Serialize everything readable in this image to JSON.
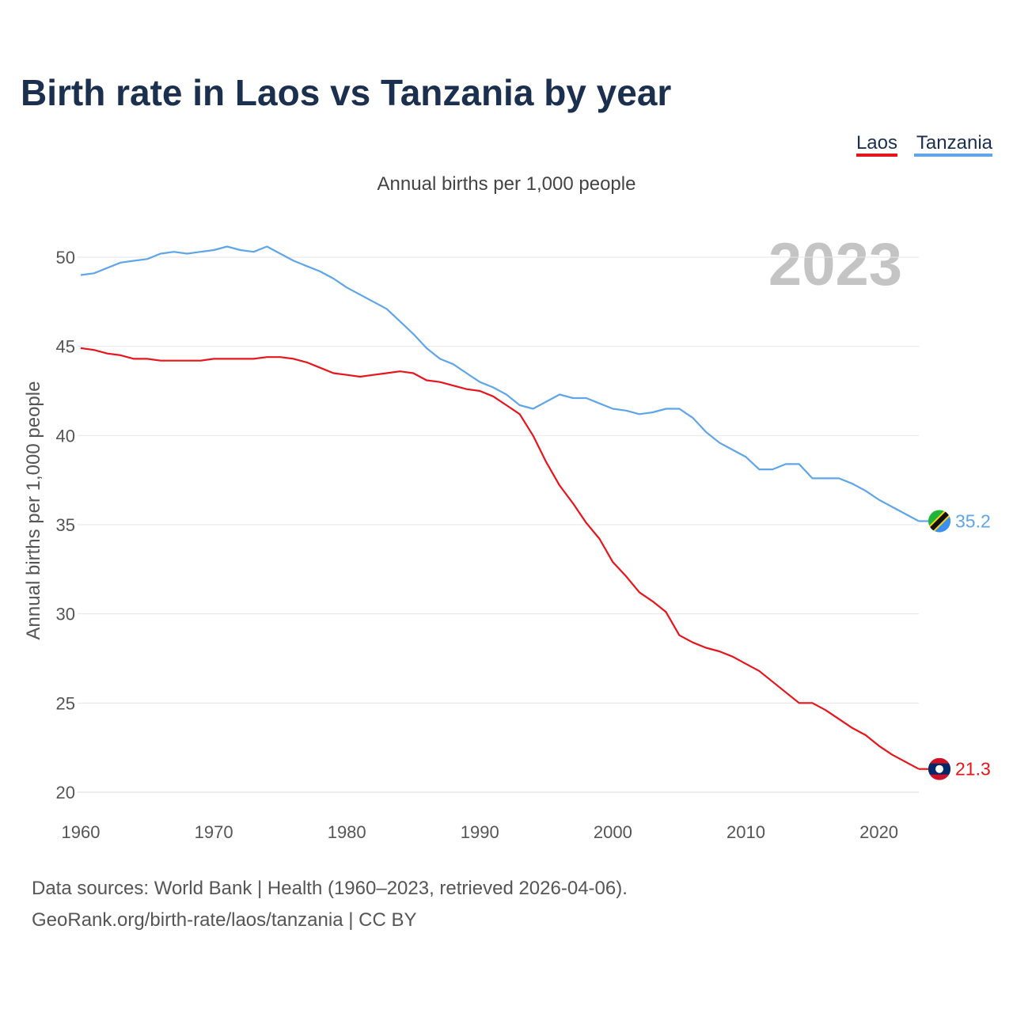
{
  "chart_data": {
    "type": "line",
    "title": "Birth rate in Laos vs Tanzania by year",
    "subtitle": "Annual births per 1,000 people",
    "ylabel": "Annual births per 1,000 people",
    "xlabel": "",
    "year_label": "2023",
    "xlim": [
      1960,
      2023
    ],
    "ylim": [
      20,
      52
    ],
    "x_ticks": [
      1960,
      1970,
      1980,
      1990,
      2000,
      2010,
      2020
    ],
    "x_tick_labels": [
      "1960",
      "1970",
      "1980",
      "1990",
      "2000",
      "2010",
      "2020"
    ],
    "y_ticks": [
      20,
      25,
      30,
      35,
      40,
      45,
      50
    ],
    "y_tick_labels": [
      "20",
      "25",
      "30",
      "35",
      "40",
      "45",
      "50"
    ],
    "grid": true,
    "legend_position": "top-right",
    "x": [
      1960,
      1961,
      1962,
      1963,
      1964,
      1965,
      1966,
      1967,
      1968,
      1969,
      1970,
      1971,
      1972,
      1973,
      1974,
      1975,
      1976,
      1977,
      1978,
      1979,
      1980,
      1981,
      1982,
      1983,
      1984,
      1985,
      1986,
      1987,
      1988,
      1989,
      1990,
      1991,
      1992,
      1993,
      1994,
      1995,
      1996,
      1997,
      1998,
      1999,
      2000,
      2001,
      2002,
      2003,
      2004,
      2005,
      2006,
      2007,
      2008,
      2009,
      2010,
      2011,
      2012,
      2013,
      2014,
      2015,
      2016,
      2017,
      2018,
      2019,
      2020,
      2021,
      2022,
      2023
    ],
    "series": [
      {
        "name": "Laos",
        "color": "#e8141b",
        "flag": "laos-flag-icon",
        "end_label": "21.3",
        "values": [
          44.9,
          44.8,
          44.6,
          44.5,
          44.3,
          44.3,
          44.2,
          44.2,
          44.2,
          44.2,
          44.3,
          44.3,
          44.3,
          44.3,
          44.4,
          44.4,
          44.3,
          44.1,
          43.8,
          43.5,
          43.4,
          43.3,
          43.4,
          43.5,
          43.6,
          43.5,
          43.1,
          43.0,
          42.8,
          42.6,
          42.5,
          42.2,
          41.7,
          41.2,
          40.0,
          38.5,
          37.2,
          36.2,
          35.1,
          34.2,
          32.9,
          32.1,
          31.2,
          30.7,
          30.1,
          28.8,
          28.4,
          28.1,
          27.9,
          27.6,
          27.2,
          26.8,
          26.2,
          25.6,
          25.0,
          25.0,
          24.6,
          24.1,
          23.6,
          23.2,
          22.6,
          22.1,
          21.7,
          21.3
        ]
      },
      {
        "name": "Tanzania",
        "color": "#5fa5e8",
        "flag": "tanzania-flag-icon",
        "end_label": "35.2",
        "values": [
          49.0,
          49.1,
          49.4,
          49.7,
          49.8,
          49.9,
          50.2,
          50.3,
          50.2,
          50.3,
          50.4,
          50.6,
          50.4,
          50.3,
          50.6,
          50.2,
          49.8,
          49.5,
          49.2,
          48.8,
          48.3,
          47.9,
          47.5,
          47.1,
          46.4,
          45.7,
          44.9,
          44.3,
          44.0,
          43.5,
          43.0,
          42.7,
          42.3,
          41.7,
          41.5,
          41.9,
          42.3,
          42.1,
          42.1,
          41.8,
          41.5,
          41.4,
          41.2,
          41.3,
          41.5,
          41.5,
          41.0,
          40.2,
          39.6,
          39.2,
          38.8,
          38.1,
          38.1,
          38.4,
          38.4,
          37.6,
          37.6,
          37.6,
          37.3,
          36.9,
          36.4,
          36.0,
          35.6,
          35.2
        ]
      }
    ],
    "source_line1": "Data sources: World Bank | Health (1960–2023, retrieved 2026-04-06).",
    "source_line2": "GeoRank.org/birth-rate/laos/tanzania | CC BY"
  }
}
